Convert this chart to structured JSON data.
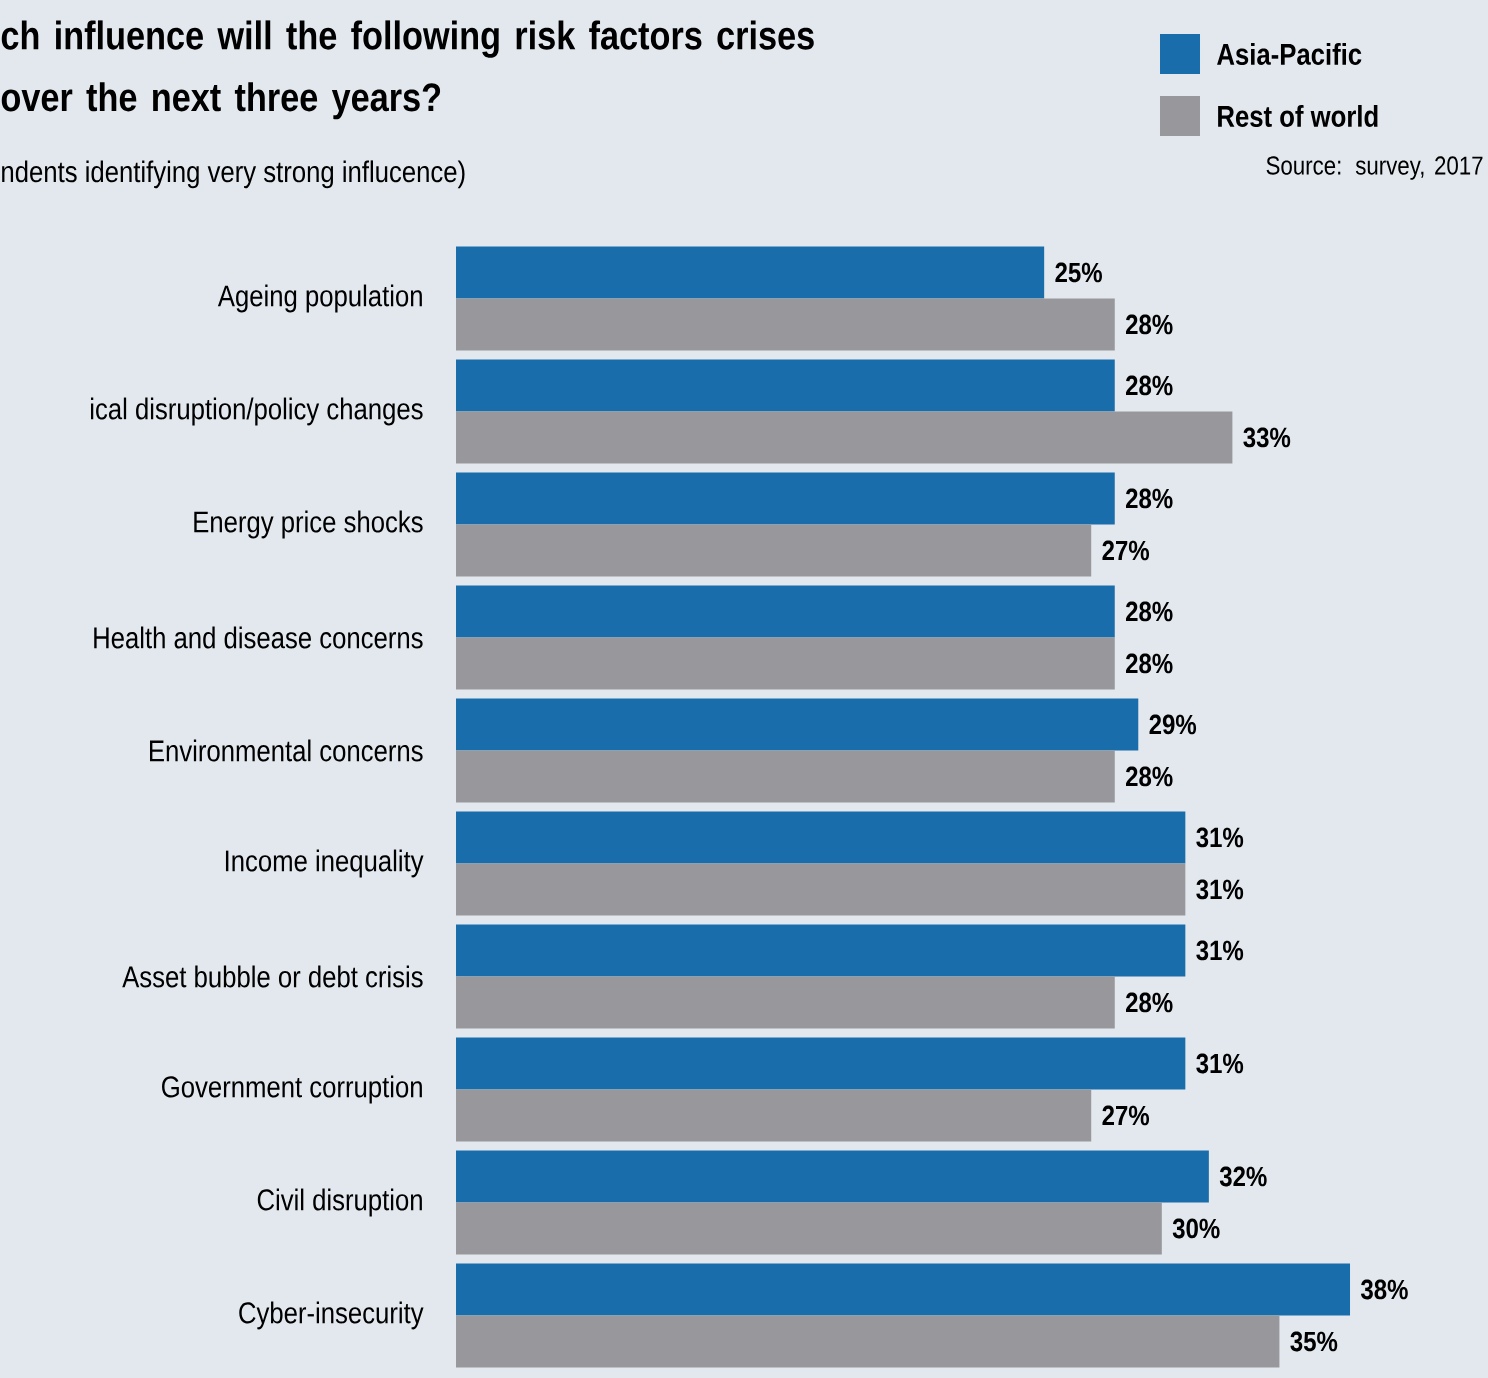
{
  "chart_data": {
    "type": "bar",
    "orientation": "horizontal",
    "title": "ch influence will the following risk factors crises over the next three years?",
    "subtitle": "ndents identifying very strong influcence)",
    "categories": [
      "Ageing population",
      "ical disruption/policy changes",
      "Energy price shocks",
      "Health and disease concerns",
      "Environmental concerns",
      "Income inequality",
      "Asset bubble or debt crisis",
      "Government corruption",
      "Civil disruption",
      "Cyber-insecurity"
    ],
    "series": [
      {
        "name": "Asia-Pacific",
        "color": "#1a6dab",
        "values": [
          25,
          28,
          28,
          28,
          29,
          31,
          31,
          31,
          32,
          38
        ],
        "value_labels": [
          "25%",
          "28%",
          "28%",
          "28%",
          "29%",
          "31%",
          "31%",
          "31%",
          "32%",
          "38%"
        ]
      },
      {
        "name": "Rest of world",
        "color": "#98979b",
        "values": [
          28,
          33,
          27,
          28,
          28,
          31,
          28,
          27,
          30,
          35
        ],
        "value_labels": [
          "28%",
          "33%",
          "27%",
          "28%",
          "28%",
          "31%",
          "28%",
          "27%",
          "30%",
          "35%"
        ]
      }
    ],
    "legend": "top right",
    "annotations": [
      "Source: survey, 2017"
    ]
  }
}
